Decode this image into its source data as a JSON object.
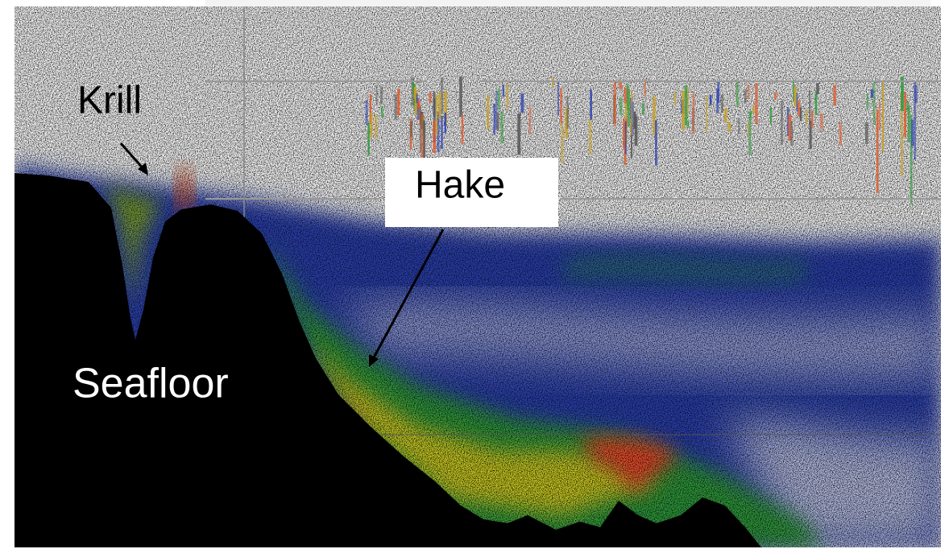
{
  "annotations": {
    "krill": "Krill",
    "hake": "Hake",
    "seafloor": "Seafloor"
  }
}
